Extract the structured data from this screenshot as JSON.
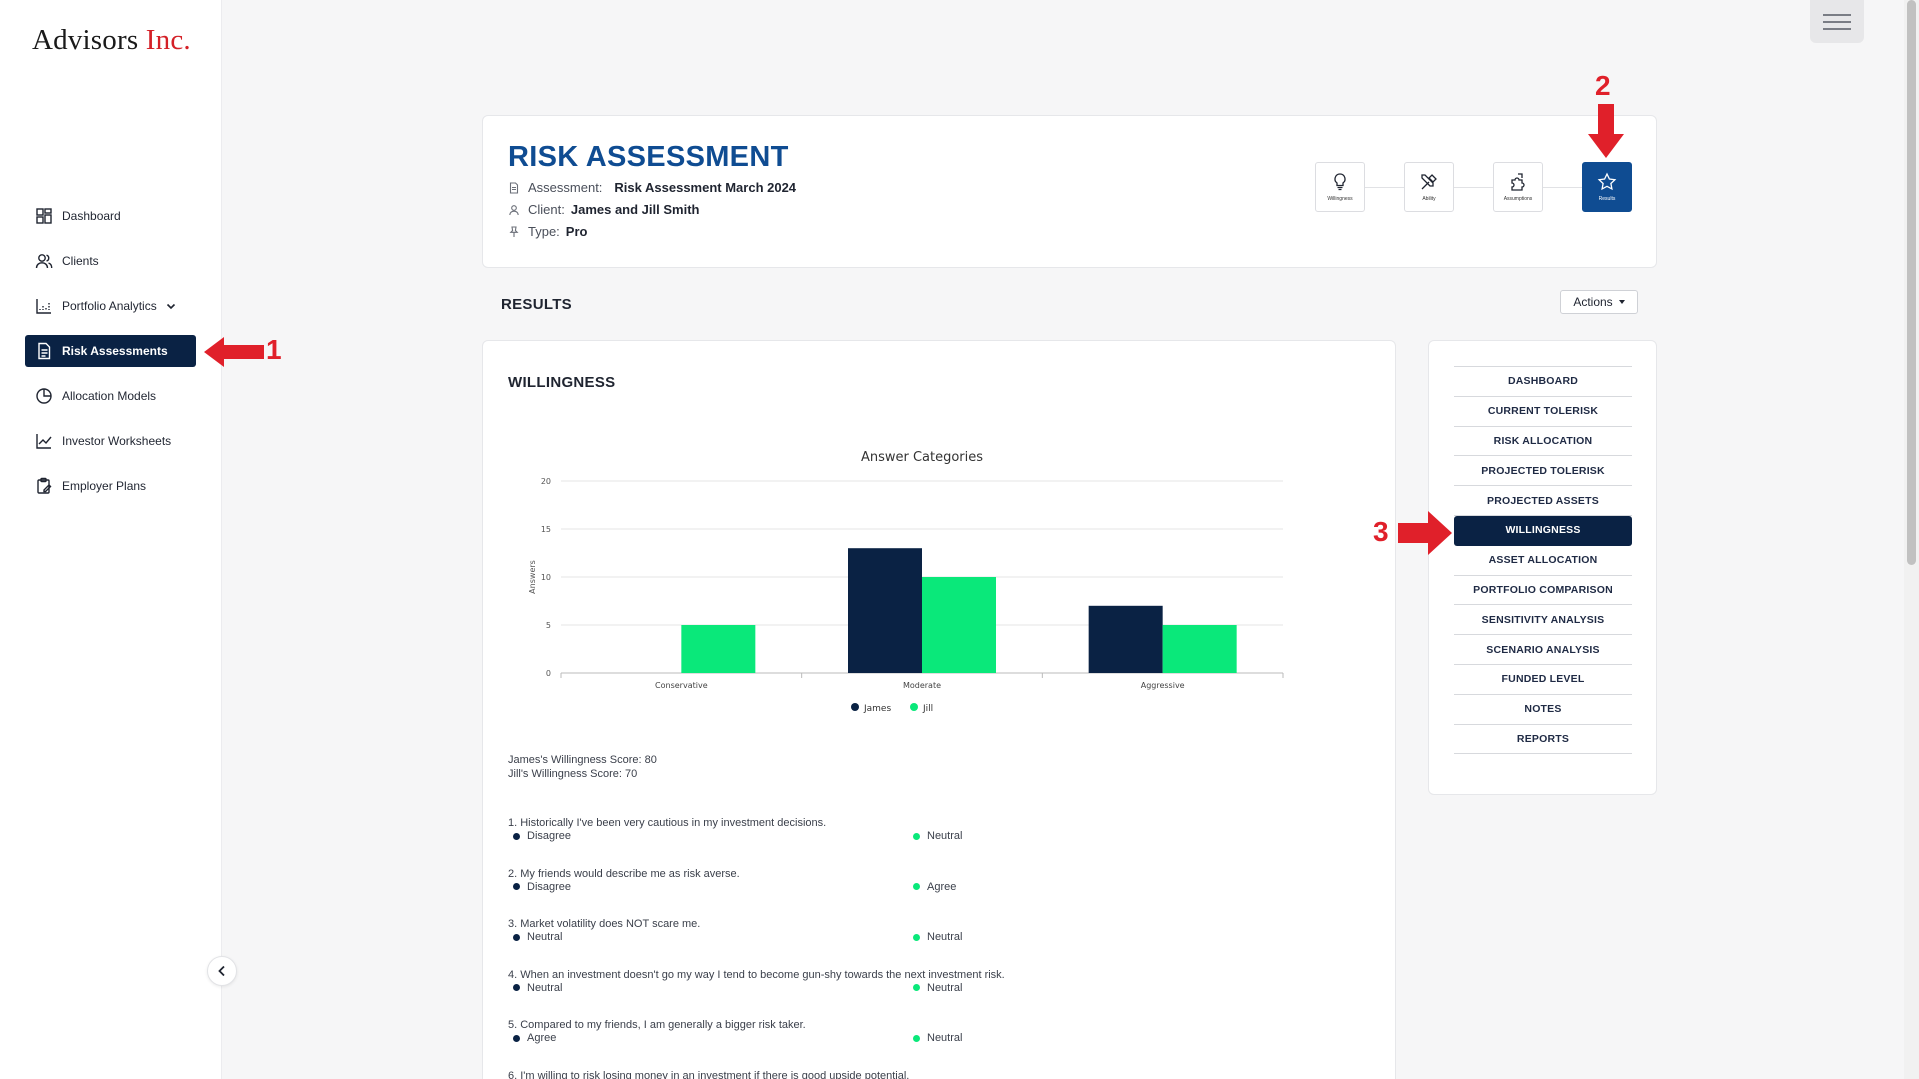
{
  "app": {
    "logo_main": "Advisors",
    "logo_accent": "Inc."
  },
  "sidebar": {
    "items": [
      {
        "label": "Dashboard",
        "icon": "dashboard-icon",
        "active": false
      },
      {
        "label": "Clients",
        "icon": "users-icon",
        "active": false
      },
      {
        "label": "Portfolio Analytics",
        "icon": "chart-icon",
        "active": false,
        "has_dropdown": true
      },
      {
        "label": "Risk Assessments",
        "icon": "document-icon",
        "active": true
      },
      {
        "label": "Allocation Models",
        "icon": "pie-icon",
        "active": false
      },
      {
        "label": "Investor Worksheets",
        "icon": "line-chart-icon",
        "active": false
      },
      {
        "label": "Employer Plans",
        "icon": "clipboard-icon",
        "active": false
      }
    ]
  },
  "header": {
    "title": "RISK ASSESSMENT",
    "assessment_label": "Assessment:",
    "assessment_value": "Risk Assessment March 2024",
    "client_label": "Client:",
    "client_value": "James and Jill Smith",
    "type_label": "Type:",
    "type_value": "Pro",
    "steps": [
      {
        "label": "Willingness",
        "icon": "lightbulb-icon",
        "active": false
      },
      {
        "label": "Ability",
        "icon": "tools-icon",
        "active": false
      },
      {
        "label": "Assumptions",
        "icon": "puzzle-icon",
        "active": false
      },
      {
        "label": "Results",
        "icon": "star-icon",
        "active": true
      }
    ]
  },
  "results": {
    "title": "RESULTS",
    "actions_label": "Actions"
  },
  "willingness": {
    "title": "WILLINGNESS",
    "score_james": "James's Willingness Score: 80",
    "score_jill": "Jill's Willingness Score: 70",
    "questions": [
      {
        "text": "1. Historically I've been very cautious in my investment decisions.",
        "james": "Disagree",
        "jill": "Neutral"
      },
      {
        "text": "2. My friends would describe me as risk averse.",
        "james": "Disagree",
        "jill": "Agree"
      },
      {
        "text": "3. Market volatility does NOT scare me.",
        "james": "Neutral",
        "jill": "Neutral"
      },
      {
        "text": "4. When an investment doesn't go my way I tend to become gun-shy towards the next investment risk.",
        "james": "Neutral",
        "jill": "Neutral"
      },
      {
        "text": "5. Compared to my friends, I am generally a bigger risk taker.",
        "james": "Agree",
        "jill": "Neutral"
      },
      {
        "text": "6. I'm willing to risk losing money in an investment if there is good upside potential.",
        "james": "",
        "jill": ""
      }
    ]
  },
  "chart_data": {
    "type": "bar",
    "title": "Answer Categories",
    "ylabel": "Answers",
    "xlabel": "",
    "categories": [
      "Conservative",
      "Moderate",
      "Aggressive"
    ],
    "series": [
      {
        "name": "James",
        "values": [
          0,
          13,
          7
        ],
        "color": "#0a2244"
      },
      {
        "name": "Jill",
        "values": [
          5,
          10,
          5
        ],
        "color": "#0ae87a"
      }
    ],
    "ylim": [
      0,
      20
    ],
    "yticks": [
      "0",
      "5",
      "10",
      "15",
      "20"
    ],
    "grid": true,
    "legend": "bottom-center"
  },
  "right_nav": {
    "items": [
      {
        "label": "DASHBOARD",
        "active": false
      },
      {
        "label": "CURRENT TOLERISK",
        "active": false
      },
      {
        "label": "RISK ALLOCATION",
        "active": false
      },
      {
        "label": "PROJECTED TOLERISK",
        "active": false
      },
      {
        "label": "PROJECTED ASSETS",
        "active": false
      },
      {
        "label": "WILLINGNESS",
        "active": true
      },
      {
        "label": "ASSET ALLOCATION",
        "active": false
      },
      {
        "label": "PORTFOLIO COMPARISON",
        "active": false
      },
      {
        "label": "SENSITIVITY ANALYSIS",
        "active": false
      },
      {
        "label": "SCENARIO ANALYSIS",
        "active": false
      },
      {
        "label": "FUNDED LEVEL",
        "active": false
      },
      {
        "label": "NOTES",
        "active": false
      },
      {
        "label": "REPORTS",
        "active": false
      }
    ]
  },
  "annotations": [
    {
      "label": "1",
      "color": "#e0202a"
    },
    {
      "label": "2",
      "color": "#e0202a"
    },
    {
      "label": "3",
      "color": "#e0202a"
    }
  ]
}
